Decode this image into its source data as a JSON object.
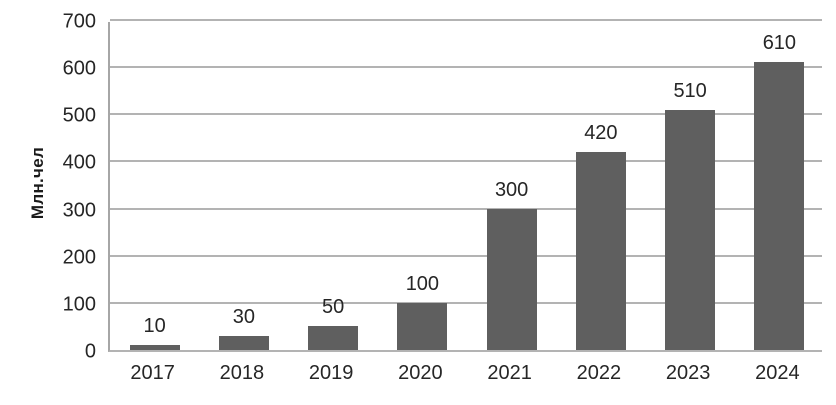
{
  "chart_data": {
    "type": "bar",
    "categories": [
      "2017",
      "2018",
      "2019",
      "2020",
      "2021",
      "2022",
      "2023",
      "2024"
    ],
    "values": [
      10,
      30,
      50,
      100,
      300,
      420,
      510,
      610
    ],
    "data_labels": [
      "10",
      "30",
      "50",
      "100",
      "300",
      "420",
      "510",
      "610"
    ],
    "title": "",
    "xlabel": "",
    "ylabel": "Млн.чел",
    "ylim": [
      0,
      700
    ],
    "yticks": [
      0,
      100,
      200,
      300,
      400,
      500,
      600,
      700
    ],
    "grid": true,
    "legend": false,
    "colors": {
      "bar": "#5f5f5f",
      "gridline": "#b3b3b3",
      "axis_line": "#a6a6a6",
      "text": "#262626",
      "background": "#ffffff"
    }
  }
}
